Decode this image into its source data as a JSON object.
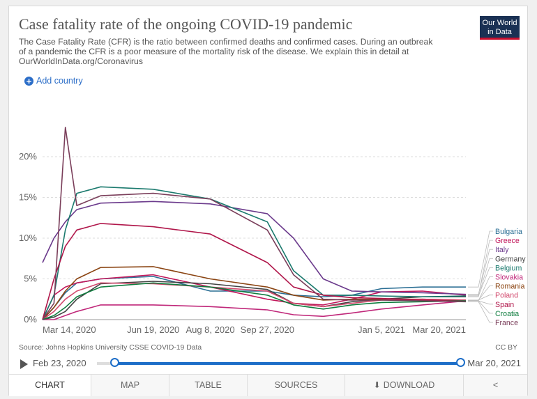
{
  "header": {
    "title": "Case fatality rate of the ongoing COVID-19 pandemic",
    "subtitle": "The Case Fatality Rate (CFR) is the ratio between confirmed deaths and confirmed cases. During an outbreak of a pandemic the CFR is a poor measure of the mortality risk of the disease. We explain this in detail at OurWorldInData.org/Coronavirus",
    "logo_line1": "Our World",
    "logo_line2": "in Data",
    "add_country": "Add country"
  },
  "footer": {
    "source": "Source: Johns Hopkins University CSSE COVID-19 Data",
    "license": "CC BY",
    "start_date": "Feb 23, 2020",
    "end_date": "Mar 20, 2021"
  },
  "tabs": {
    "chart": "CHART",
    "map": "MAP",
    "table": "TABLE",
    "sources": "SOURCES",
    "download": "DOWNLOAD"
  },
  "icons": {
    "add": "plus-circle-icon",
    "play": "play-icon",
    "download": "download-icon",
    "share": "share-icon"
  },
  "chart_data": {
    "type": "line",
    "ylim": [
      0,
      0.235
    ],
    "x_ticks": [
      "Mar 14, 2020",
      "Jun 19, 2020",
      "Aug 8, 2020",
      "Sep 27, 2020",
      "Jan 5, 2021",
      "Mar 20, 2021"
    ],
    "y_ticks": [
      "0%",
      "5%",
      "10%",
      "15%",
      "20%"
    ],
    "x": [
      "Mar 14, 2020",
      "Mar 24, 2020",
      "Apr 3, 2020",
      "Apr 13, 2020",
      "May 4, 2020",
      "Jun 19, 2020",
      "Aug 8, 2020",
      "Sep 27, 2020",
      "Oct 20, 2020",
      "Nov 15, 2020",
      "Dec 10, 2020",
      "Jan 5, 2021",
      "Feb 10, 2021",
      "Mar 20, 2021"
    ],
    "series": [
      {
        "name": "Bulgaria",
        "color": "#2a6e94",
        "values": [
          0.0,
          0.015,
          0.033,
          0.045,
          0.05,
          0.053,
          0.035,
          0.035,
          0.03,
          0.028,
          0.03,
          0.038,
          0.04,
          0.04
        ]
      },
      {
        "name": "Greece",
        "color": "#c2185b",
        "values": [
          0.0,
          0.03,
          0.04,
          0.045,
          0.05,
          0.055,
          0.04,
          0.025,
          0.02,
          0.018,
          0.025,
          0.034,
          0.035,
          0.03
        ]
      },
      {
        "name": "Italy",
        "color": "#6b3a8c",
        "values": [
          0.07,
          0.1,
          0.12,
          0.135,
          0.143,
          0.145,
          0.142,
          0.13,
          0.1,
          0.05,
          0.035,
          0.034,
          0.033,
          0.031
        ]
      },
      {
        "name": "Germany",
        "color": "#444444",
        "values": [
          0.0,
          0.003,
          0.01,
          0.025,
          0.044,
          0.047,
          0.044,
          0.037,
          0.02,
          0.016,
          0.022,
          0.025,
          0.028,
          0.028
        ]
      },
      {
        "name": "Belgium",
        "color": "#1b7a6e",
        "values": [
          0.0,
          0.03,
          0.11,
          0.155,
          0.163,
          0.16,
          0.148,
          0.12,
          0.06,
          0.03,
          0.03,
          0.029,
          0.028,
          0.029
        ]
      },
      {
        "name": "Slovakia",
        "color": "#c0287a",
        "values": [
          0.0,
          0.0,
          0.005,
          0.01,
          0.018,
          0.018,
          0.016,
          0.012,
          0.006,
          0.004,
          0.008,
          0.013,
          0.018,
          0.023
        ]
      },
      {
        "name": "Romania",
        "color": "#8b4513",
        "values": [
          0.0,
          0.015,
          0.035,
          0.05,
          0.064,
          0.065,
          0.05,
          0.04,
          0.03,
          0.024,
          0.025,
          0.025,
          0.025,
          0.024
        ]
      },
      {
        "name": "Poland",
        "color": "#d24a6e",
        "values": [
          0.0,
          0.01,
          0.025,
          0.035,
          0.045,
          0.044,
          0.04,
          0.035,
          0.02,
          0.016,
          0.02,
          0.024,
          0.025,
          0.024
        ]
      },
      {
        "name": "Spain",
        "color": "#b0164a",
        "values": [
          0.0,
          0.05,
          0.09,
          0.11,
          0.118,
          0.114,
          0.105,
          0.07,
          0.04,
          0.03,
          0.027,
          0.026,
          0.024,
          0.023
        ]
      },
      {
        "name": "Croatia",
        "color": "#0f7d3f",
        "values": [
          0.0,
          0.005,
          0.015,
          0.028,
          0.04,
          0.045,
          0.04,
          0.03,
          0.018,
          0.013,
          0.018,
          0.021,
          0.022,
          0.023
        ]
      },
      {
        "name": "France",
        "color": "#7a3e5a",
        "values": [
          0.0,
          0.02,
          0.236,
          0.14,
          0.152,
          0.155,
          0.148,
          0.11,
          0.055,
          0.025,
          0.024,
          0.024,
          0.023,
          0.022
        ]
      }
    ]
  }
}
